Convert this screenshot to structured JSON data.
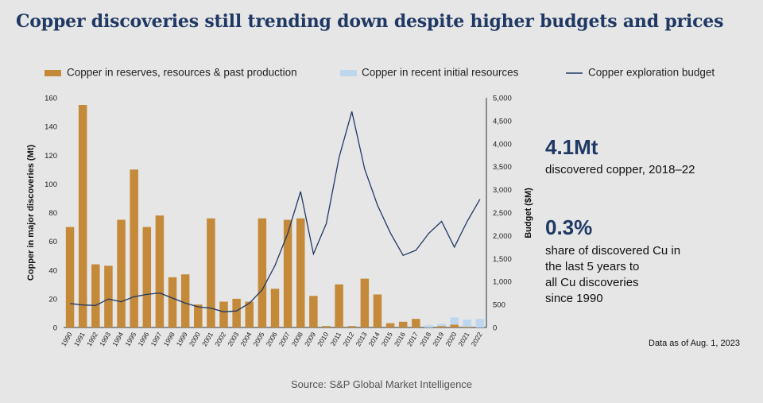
{
  "title": "Copper discoveries still trending down despite higher budgets and prices",
  "chart_data": {
    "type": "bar",
    "categories": [
      "1990",
      "1991",
      "1992",
      "1993",
      "1994",
      "1995",
      "1996",
      "1997",
      "1998",
      "1999",
      "2000",
      "2001",
      "2002",
      "2003",
      "2004",
      "2005",
      "2006",
      "2007",
      "2008",
      "2009",
      "2010",
      "2011",
      "2012",
      "2013",
      "2014",
      "2015",
      "2016",
      "2017",
      "2018",
      "2019",
      "2020",
      "2021",
      "2022"
    ],
    "series": [
      {
        "name": "Copper in reserves, resources & past production",
        "type": "bar",
        "axis": "left",
        "color": "#c48a3a",
        "values": [
          70,
          155,
          44,
          43,
          75,
          110,
          70,
          78,
          35,
          37,
          16,
          76,
          18,
          20,
          18,
          76,
          27,
          75,
          76,
          22,
          1,
          30,
          1,
          34,
          23,
          3,
          4,
          6,
          0,
          1,
          2,
          0.5,
          0
        ]
      },
      {
        "name": "Copper in recent initial resources",
        "type": "bar",
        "axis": "left",
        "color": "#bdd7ee",
        "values": [
          0,
          0,
          0,
          0,
          0,
          0,
          0,
          0,
          0,
          0,
          0,
          0,
          0,
          0,
          0,
          0,
          0,
          0,
          0,
          0,
          0,
          0,
          0,
          0,
          0,
          0,
          0,
          0,
          1.5,
          1.5,
          5,
          5,
          6
        ]
      },
      {
        "name": "Copper exploration budget",
        "type": "line",
        "axis": "right",
        "color": "#1f3864",
        "values": [
          520,
          490,
          480,
          620,
          560,
          670,
          720,
          750,
          640,
          530,
          450,
          420,
          340,
          360,
          530,
          820,
          1350,
          2050,
          2960,
          1600,
          2260,
          3700,
          4700,
          3450,
          2660,
          2060,
          1570,
          1680,
          2050,
          2310,
          1750,
          2310,
          2790
        ]
      }
    ],
    "ylabel": "Copper in major discoveries (Mt)",
    "ylim": [
      0,
      160
    ],
    "yticks": [
      "0",
      "20",
      "40",
      "60",
      "80",
      "100",
      "120",
      "140",
      "160"
    ],
    "y2label": "Budget ($M)",
    "y2lim": [
      0,
      5000
    ],
    "y2ticks": [
      "0",
      "500",
      "1,000",
      "1,500",
      "2,000",
      "2,500",
      "3,000",
      "3,500",
      "4,000",
      "4,500",
      "5,000"
    ],
    "legend_position": "top"
  },
  "stats": [
    {
      "value": "4.1Mt",
      "lines": [
        "discovered copper, 2018–22"
      ]
    },
    {
      "value": "0.3%",
      "lines": [
        "share of discovered Cu in",
        "the last 5 years to",
        "all Cu discoveries",
        "since 1990"
      ]
    }
  ],
  "as_of": "Data as of Aug. 1, 2023",
  "source": "Source: S&P Global Market Intelligence"
}
